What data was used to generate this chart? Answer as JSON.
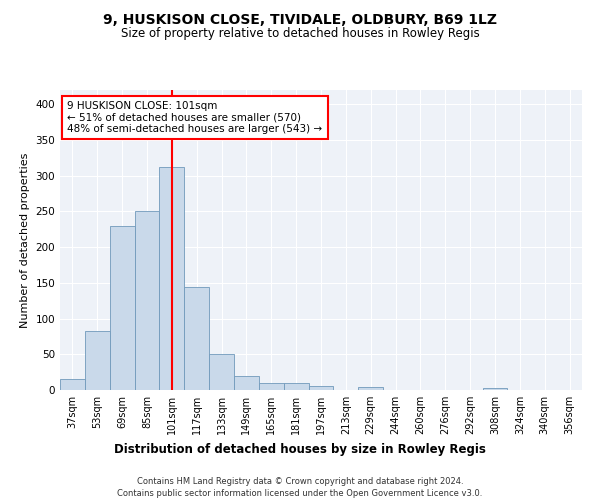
{
  "title": "9, HUSKISON CLOSE, TIVIDALE, OLDBURY, B69 1LZ",
  "subtitle": "Size of property relative to detached houses in Rowley Regis",
  "xlabel_bottom": "Distribution of detached houses by size in Rowley Regis",
  "ylabel": "Number of detached properties",
  "footer1": "Contains HM Land Registry data © Crown copyright and database right 2024.",
  "footer2": "Contains public sector information licensed under the Open Government Licence v3.0.",
  "bin_labels": [
    "37sqm",
    "53sqm",
    "69sqm",
    "85sqm",
    "101sqm",
    "117sqm",
    "133sqm",
    "149sqm",
    "165sqm",
    "181sqm",
    "197sqm",
    "213sqm",
    "229sqm",
    "244sqm",
    "260sqm",
    "276sqm",
    "292sqm",
    "308sqm",
    "324sqm",
    "340sqm",
    "356sqm"
  ],
  "bar_values": [
    16,
    82,
    230,
    250,
    312,
    144,
    50,
    20,
    10,
    10,
    5,
    0,
    4,
    0,
    0,
    0,
    0,
    3,
    0,
    0,
    0
  ],
  "bar_color": "#c9d9ea",
  "bar_edge_color": "#7099bb",
  "red_line_bin": 4,
  "annotation_line1": "9 HUSKISON CLOSE: 101sqm",
  "annotation_line2": "← 51% of detached houses are smaller (570)",
  "annotation_line3": "48% of semi-detached houses are larger (543) →",
  "annotation_box_color": "white",
  "annotation_box_edge_color": "red",
  "ylim": [
    0,
    420
  ],
  "yticks": [
    0,
    50,
    100,
    150,
    200,
    250,
    300,
    350,
    400
  ],
  "background_color": "#eef2f8",
  "grid_color": "white",
  "title_fontsize": 10,
  "subtitle_fontsize": 8.5,
  "tick_fontsize": 7,
  "ylabel_fontsize": 8,
  "xlabel_bottom_fontsize": 8.5,
  "footer_fontsize": 6,
  "annotation_fontsize": 7.5
}
